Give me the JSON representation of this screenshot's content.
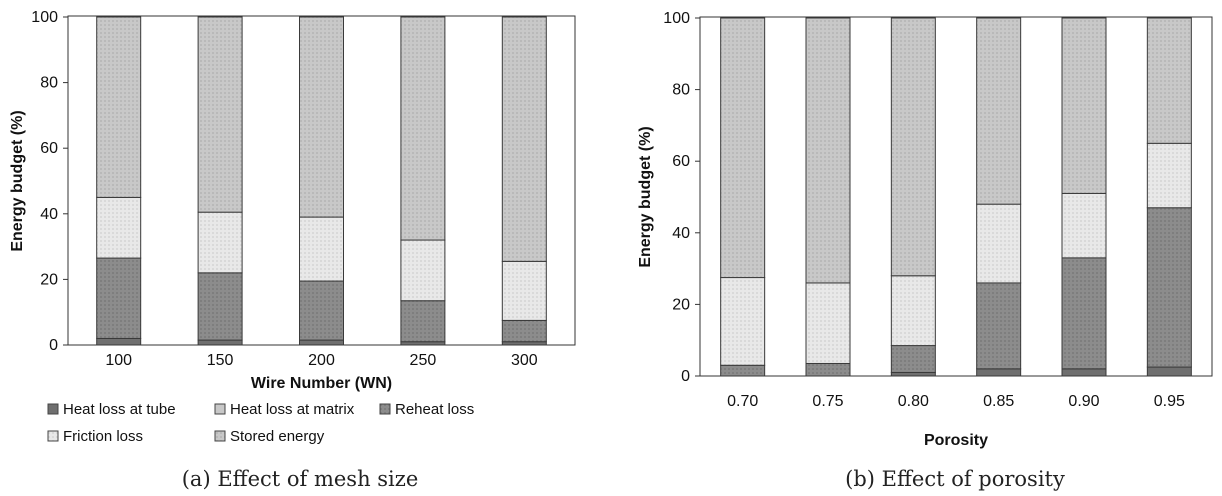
{
  "series_colors": {
    "Heat loss at tube": "#6f6f6f",
    "Heat loss at matrix": "#c8c8c8",
    "Reheat loss": "#8a8a8a",
    "Friction loss": "#e6e6e6",
    "Stored energy": "#c3c3c3"
  },
  "chart_data": [
    {
      "type": "bar",
      "stacked": true,
      "xlabel": "Wire Number (WN)",
      "ylabel": "Energy budget (%)",
      "ylim": [
        0,
        100
      ],
      "yticks": [
        "0",
        "20",
        "40",
        "60",
        "80",
        "100"
      ],
      "categories": [
        "100",
        "150",
        "200",
        "250",
        "300"
      ],
      "series": [
        {
          "name": "Heat loss at tube",
          "values": [
            2,
            1.5,
            1.5,
            1,
            1
          ]
        },
        {
          "name": "Reheat loss",
          "values": [
            24.5,
            20.5,
            18,
            12.5,
            6.5
          ]
        },
        {
          "name": "Friction loss",
          "values": [
            18.5,
            18.5,
            19.5,
            18.5,
            18
          ]
        },
        {
          "name": "Heat loss at matrix",
          "values": [
            0,
            0,
            0,
            0,
            0
          ]
        },
        {
          "name": "Stored energy",
          "values": [
            55,
            59.5,
            61,
            68,
            74.5
          ]
        }
      ],
      "legend": "bottom",
      "caption": "(a) Effect of mesh size"
    },
    {
      "type": "bar",
      "stacked": true,
      "xlabel": "Porosity",
      "ylabel": "Energy budget (%)",
      "ylim": [
        0,
        100
      ],
      "yticks": [
        "0",
        "20",
        "40",
        "60",
        "80",
        "100"
      ],
      "categories": [
        "0.70",
        "0.75",
        "0.80",
        "0.85",
        "0.90",
        "0.95"
      ],
      "series": [
        {
          "name": "Heat loss at tube",
          "values": [
            0,
            0,
            1,
            2,
            2,
            2.5
          ]
        },
        {
          "name": "Reheat loss",
          "values": [
            3,
            3.5,
            7.5,
            24,
            31,
            44.5
          ]
        },
        {
          "name": "Friction loss",
          "values": [
            24.5,
            22.5,
            19.5,
            22,
            18,
            18
          ]
        },
        {
          "name": "Heat loss at matrix",
          "values": [
            0,
            0,
            0,
            0,
            0,
            0
          ]
        },
        {
          "name": "Stored energy",
          "values": [
            72.5,
            74,
            72,
            52,
            49,
            35
          ]
        }
      ],
      "caption": "(b) Effect of porosity"
    }
  ]
}
